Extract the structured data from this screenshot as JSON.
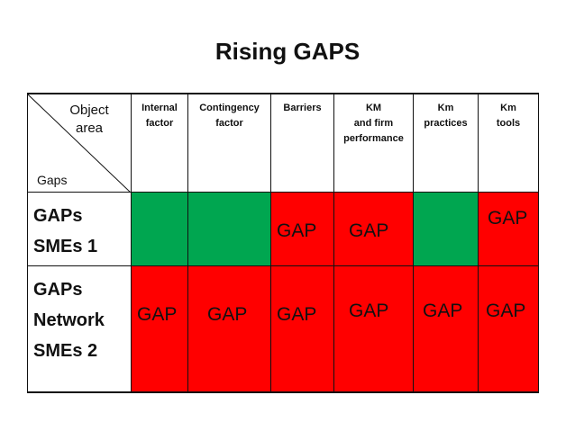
{
  "title": "Rising GAPS",
  "table": {
    "corner": {
      "object_area": "Object\narea",
      "gaps": "Gaps"
    },
    "columns": [
      "Internal\nfactor",
      "Contingency\nfactor",
      "Barriers",
      "KM\nand firm\nperformance",
      "Km\npractices",
      "Km\ntools"
    ],
    "rows": [
      {
        "label": "GAPs\nSMEs 1",
        "cells": [
          "",
          "",
          "GAP",
          "GAP",
          "",
          "GAP"
        ],
        "colors": [
          "green",
          "green",
          "red",
          "red",
          "green",
          "red"
        ]
      },
      {
        "label": "GAPs\nNetwork\nSMEs 2",
        "cells": [
          "GAP",
          "GAP",
          "GAP",
          "GAP",
          "GAP",
          "GAP"
        ],
        "colors": [
          "red",
          "red",
          "red",
          "red",
          "red",
          "red"
        ]
      }
    ]
  },
  "colors": {
    "green": "#00a650",
    "red": "#ff0000"
  }
}
